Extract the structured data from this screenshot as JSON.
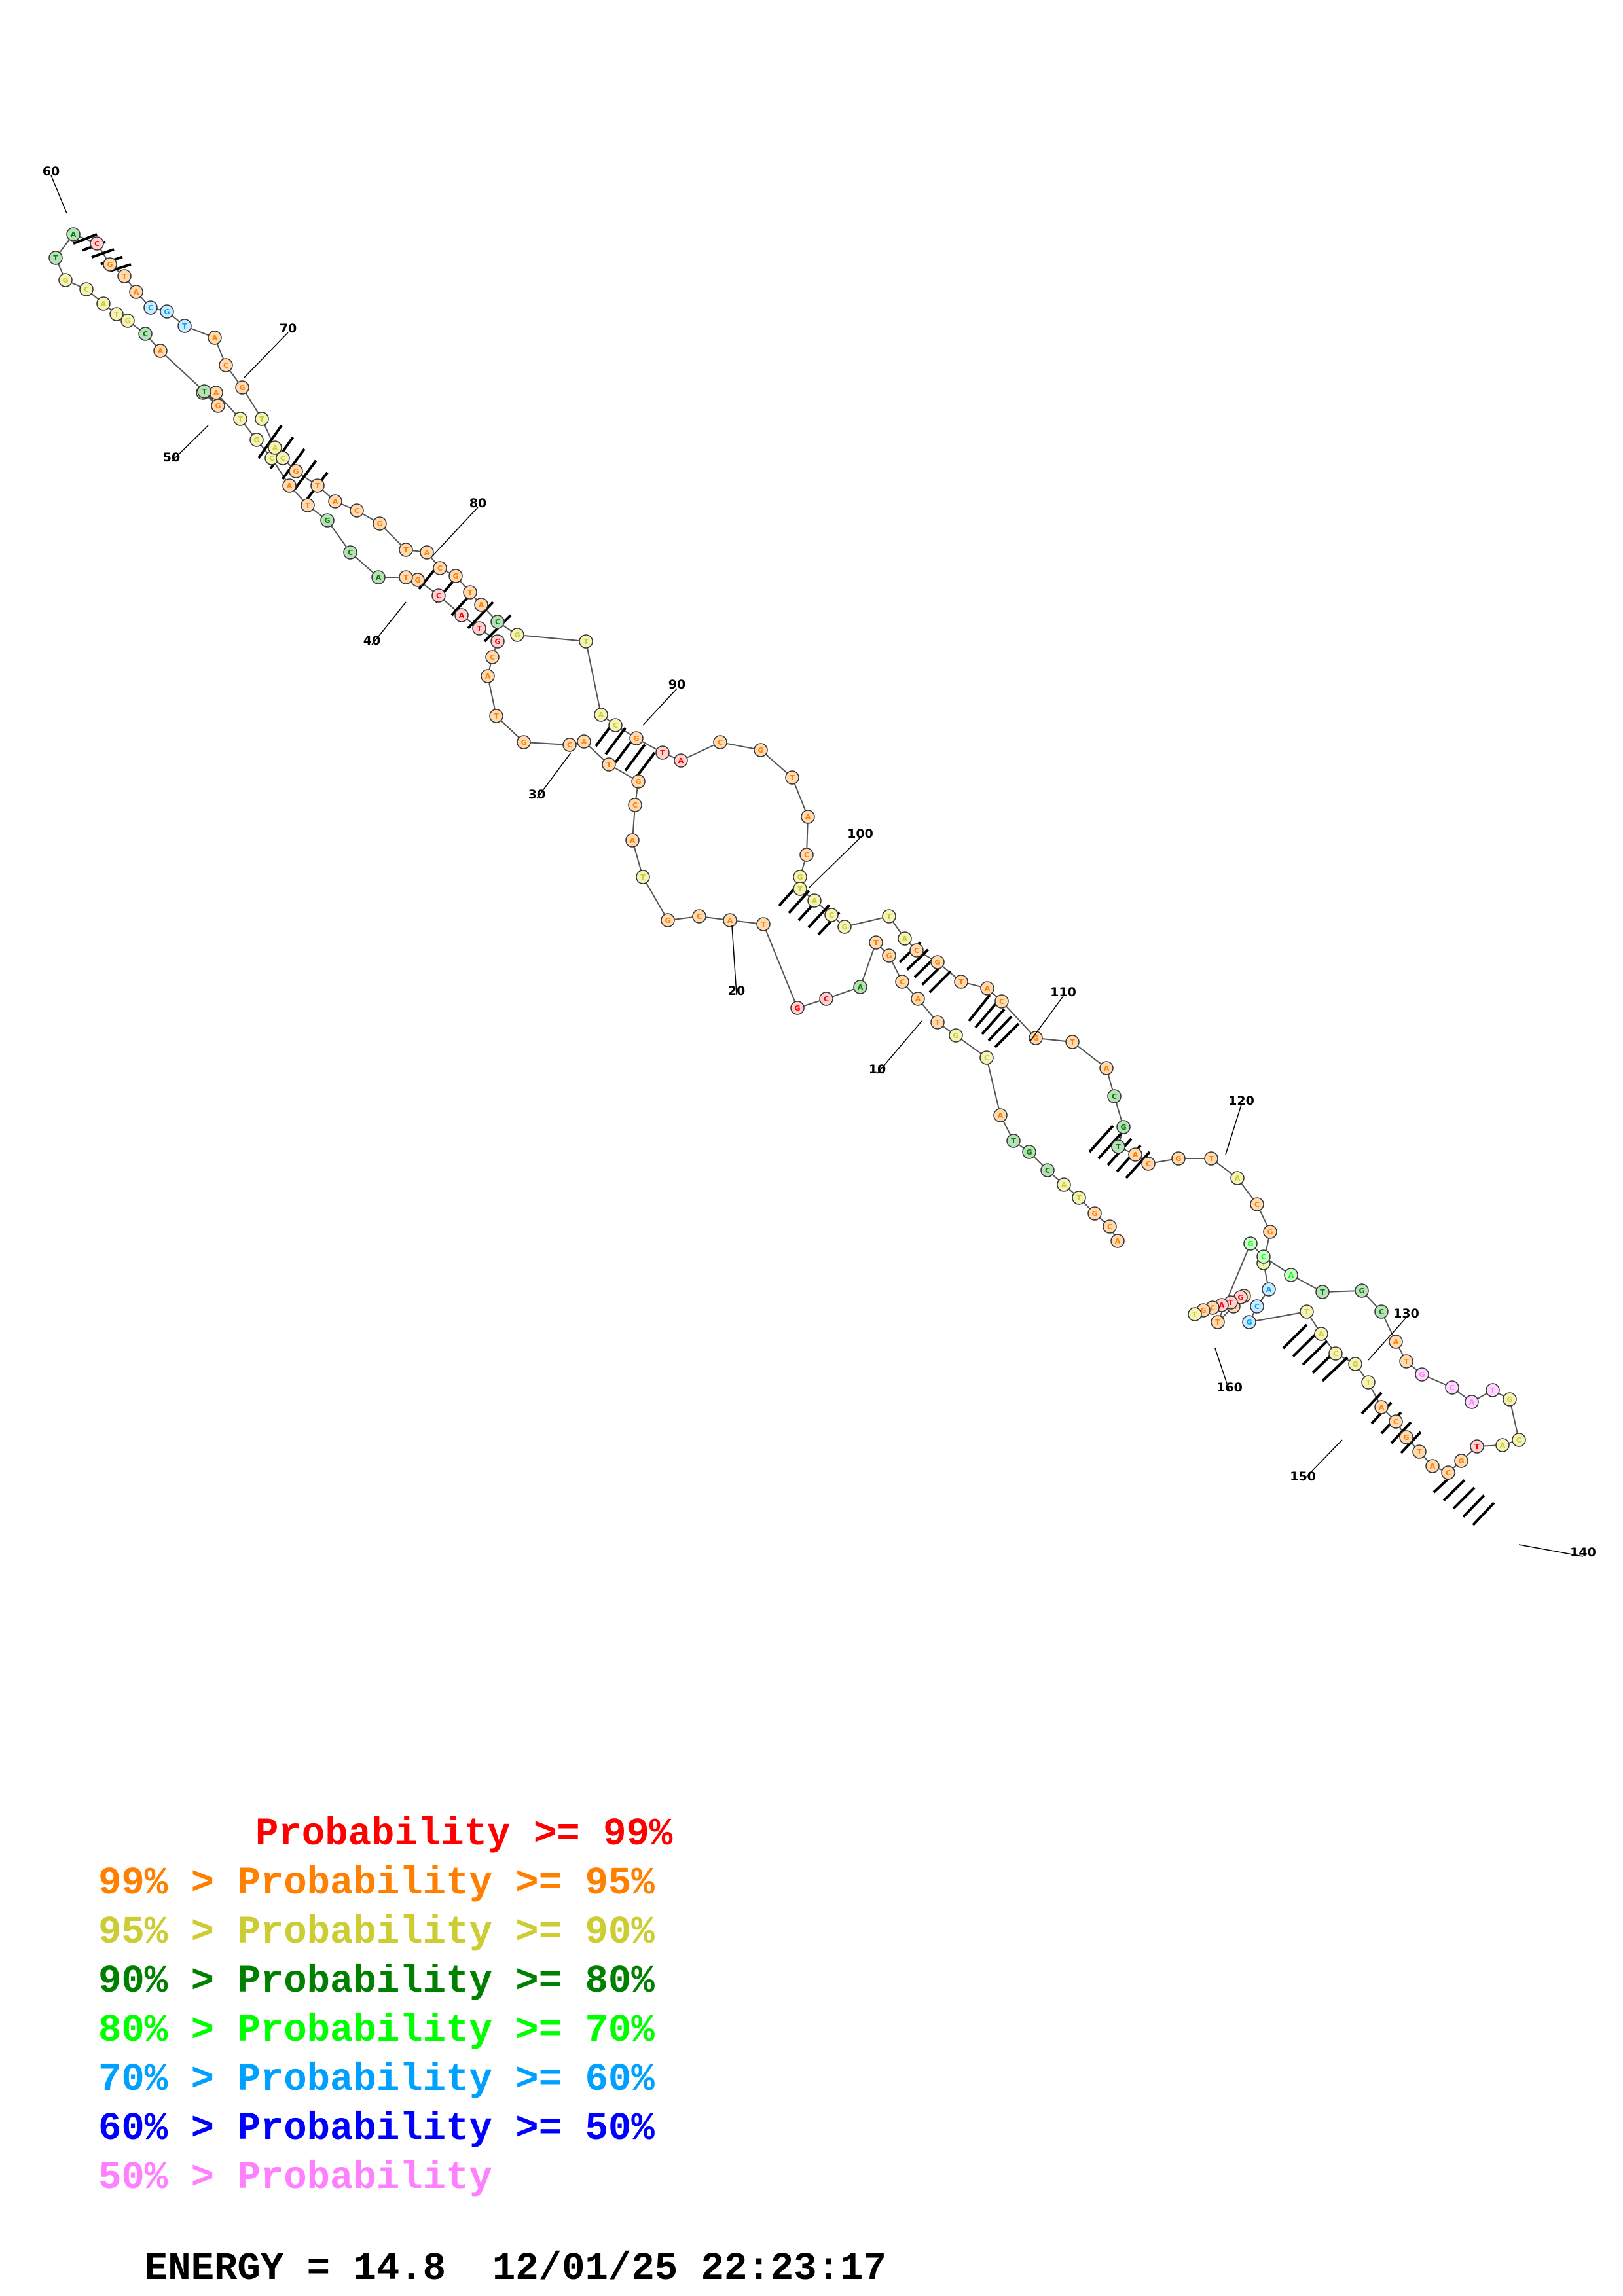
{
  "legend": [
    {
      "prefix": "",
      "label": "Probability >= 99%",
      "color": "#ff0000"
    },
    {
      "prefix": "99% > ",
      "label": "Probability >= 95%",
      "color": "#ff8000"
    },
    {
      "prefix": "95% > ",
      "label": "Probability >= 90%",
      "color": "#cccc33"
    },
    {
      "prefix": "90% > ",
      "label": "Probability >= 80%",
      "color": "#008000"
    },
    {
      "prefix": "80% > ",
      "label": "Probability >= 70%",
      "color": "#00ff00"
    },
    {
      "prefix": "70% > ",
      "label": "Probability >= 60%",
      "color": "#00a0ff"
    },
    {
      "prefix": "60% > ",
      "label": "Probability >= 50%",
      "color": "#0000ff"
    },
    {
      "prefix": "50% > ",
      "label": "Probability",
      "color": "#ff80ff"
    }
  ],
  "footer": {
    "energy": "ENERGY = 14.8",
    "timestamp": "12/01/25 22:23:17"
  },
  "position_labels": [
    "10",
    "20",
    "30",
    "40",
    "50",
    "60",
    "70",
    "80",
    "90",
    "100",
    "110",
    "120",
    "130",
    "140",
    "150",
    "160"
  ],
  "structure": {
    "sequence": "ACGTACGTACGTACGTACGTACGTACGTACGTACGTACGTACGTACGTACGTACGTACGTACGTACGTACGTACGTACGTACGTACGTACGTACGTACGTACGTACGTACGTACGTACGTACGTACGTACGTACGTACGTACGTACGTACGTACGT",
    "note": "nucleotides along the backbone, colored by base-pair probability class"
  }
}
